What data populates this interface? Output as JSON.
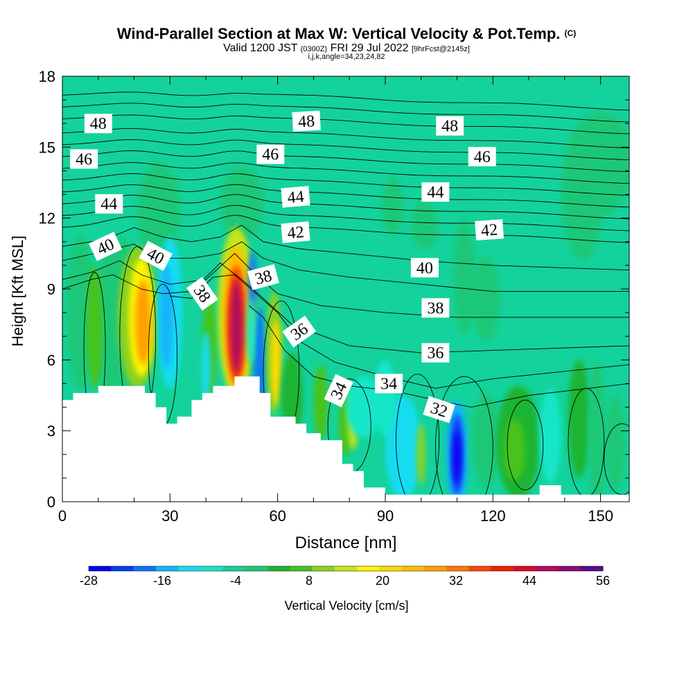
{
  "header": {
    "title_main": "Wind-Parallel Section at Max W: Vertical Velocity & Pot.Temp.",
    "title_mark": "(C)",
    "valid_a": "Valid 1200 JST",
    "valid_utc": "(0300Z)",
    "valid_b": "FRI 29 Jul 2022",
    "valid_fcst": "[9hrFcst@2145z]",
    "indices": "i,j,k,angle=34,23,24,82"
  },
  "chart_data": {
    "type": "heatmap",
    "xlabel": "Distance [nm]",
    "ylabel": "Height [Kft MSL]",
    "xlim": [
      0,
      158
    ],
    "ylim": [
      0,
      18
    ],
    "x_ticks": [
      0,
      30,
      60,
      90,
      120,
      150
    ],
    "y_ticks": [
      0,
      3,
      6,
      9,
      12,
      15,
      18
    ],
    "colorbar": {
      "label": "Vertical Velocity [cm/s]",
      "tick_labels": [
        -28,
        -16,
        -4,
        8,
        20,
        32,
        44,
        56
      ],
      "min": -28,
      "max": 56,
      "step": 4,
      "colors": [
        "#0a00f0",
        "#0a3cf5",
        "#0a78f5",
        "#14b4fa",
        "#14dcf0",
        "#14e6c8",
        "#14d29b",
        "#1ec878",
        "#1eb432",
        "#46c31e",
        "#8cd21e",
        "#c8e614",
        "#fff500",
        "#ffdc00",
        "#ffbe00",
        "#ffa000",
        "#ff7800",
        "#ff4600",
        "#f51e00",
        "#dc0a28",
        "#b40a5a",
        "#8c0a78",
        "#5a0a8c"
      ]
    },
    "background_value": -2,
    "theta_contour_labels": [
      {
        "label": "48",
        "x": 10,
        "y": 16.0,
        "angle": 0
      },
      {
        "label": "48",
        "x": 68,
        "y": 16.1,
        "angle": -3
      },
      {
        "label": "48",
        "x": 108,
        "y": 15.9,
        "angle": 0
      },
      {
        "label": "46",
        "x": 6,
        "y": 14.5,
        "angle": 0
      },
      {
        "label": "46",
        "x": 58,
        "y": 14.7,
        "angle": 0
      },
      {
        "label": "46",
        "x": 117,
        "y": 14.6,
        "angle": 0
      },
      {
        "label": "44",
        "x": 13,
        "y": 12.6,
        "angle": 0
      },
      {
        "label": "44",
        "x": 65,
        "y": 12.9,
        "angle": -5
      },
      {
        "label": "44",
        "x": 104,
        "y": 13.1,
        "angle": 0
      },
      {
        "label": "42",
        "x": 65,
        "y": 11.4,
        "angle": -5
      },
      {
        "label": "42",
        "x": 119,
        "y": 11.5,
        "angle": -4
      },
      {
        "label": "40",
        "x": 12,
        "y": 10.8,
        "angle": -25
      },
      {
        "label": "40",
        "x": 26,
        "y": 10.4,
        "angle": 28
      },
      {
        "label": "40",
        "x": 101,
        "y": 9.9,
        "angle": 0
      },
      {
        "label": "38",
        "x": 39,
        "y": 8.8,
        "angle": 55
      },
      {
        "label": "38",
        "x": 56,
        "y": 9.5,
        "angle": -15
      },
      {
        "label": "38",
        "x": 104,
        "y": 8.2,
        "angle": 0
      },
      {
        "label": "36",
        "x": 66,
        "y": 7.2,
        "angle": -35
      },
      {
        "label": "36",
        "x": 104,
        "y": 6.3,
        "angle": 0
      },
      {
        "label": "34",
        "x": 77,
        "y": 4.7,
        "angle": -65
      },
      {
        "label": "34",
        "x": 91,
        "y": 5.0,
        "angle": 0
      },
      {
        "label": "32",
        "x": 105,
        "y": 3.9,
        "angle": 18
      }
    ],
    "terrain_kft": [
      {
        "x": 0,
        "h": 4.3
      },
      {
        "x": 3,
        "h": 4.6
      },
      {
        "x": 10,
        "h": 4.9
      },
      {
        "x": 23,
        "h": 4.6
      },
      {
        "x": 26,
        "h": 4.0
      },
      {
        "x": 29,
        "h": 3.3
      },
      {
        "x": 32,
        "h": 3.6
      },
      {
        "x": 36,
        "h": 4.3
      },
      {
        "x": 39,
        "h": 4.6
      },
      {
        "x": 42,
        "h": 4.9
      },
      {
        "x": 48,
        "h": 5.3
      },
      {
        "x": 55,
        "h": 4.6
      },
      {
        "x": 58,
        "h": 3.6
      },
      {
        "x": 65,
        "h": 3.3
      },
      {
        "x": 68,
        "h": 2.9
      },
      {
        "x": 72,
        "h": 2.6
      },
      {
        "x": 78,
        "h": 1.6
      },
      {
        "x": 81,
        "h": 1.3
      },
      {
        "x": 84,
        "h": 0.6
      },
      {
        "x": 90,
        "h": 0.3
      },
      {
        "x": 133,
        "h": 0.7
      },
      {
        "x": 139,
        "h": 0.3
      }
    ]
  }
}
